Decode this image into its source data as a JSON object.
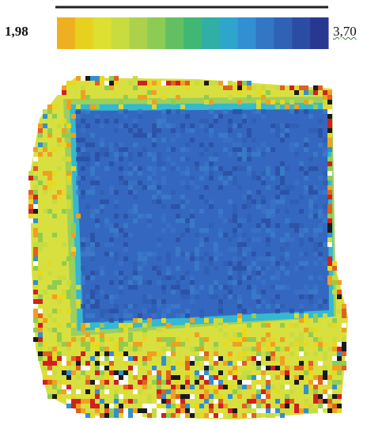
{
  "colorbar": {
    "min_label": "1,98",
    "max_label": "3,70"
  }
}
